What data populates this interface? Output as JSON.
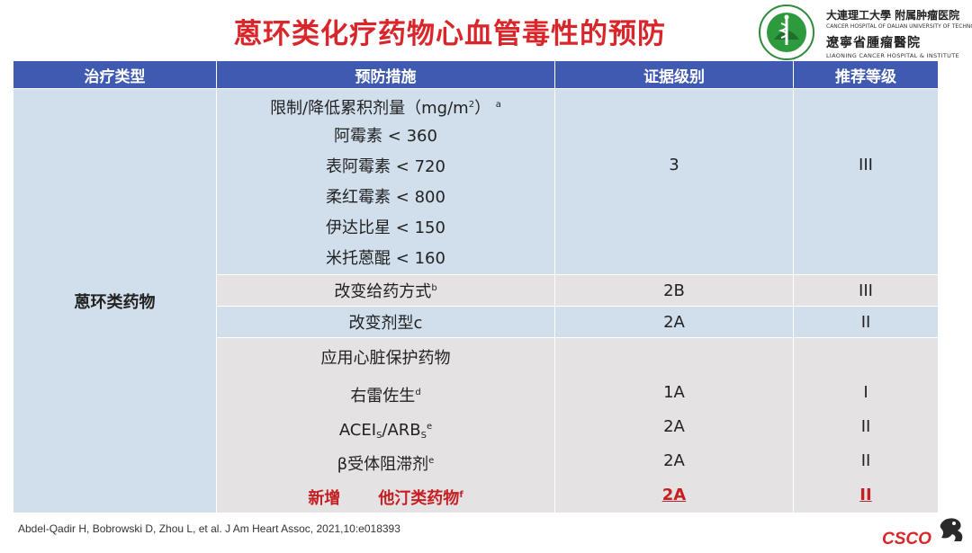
{
  "title": "蒽环类化疗药物心血管毒性的预防",
  "logo": {
    "univ_cn": "大連理工大學 附属肿瘤医院",
    "univ_en": "CANCER HOSPITAL OF DALIAN UNIVERSITY OF TECHNOLOGY",
    "hosp_cn": "遼寧省腫瘤醫院",
    "hosp_en": "LIAONING CANCER HOSPITAL & INSTITUTE"
  },
  "table": {
    "headers": [
      "治疗类型",
      "预防措施",
      "证据级别",
      "推荐等级"
    ],
    "drug_type": "蒽环类药物",
    "group1": {
      "heading": "限制/降低累积剂量（mg/m",
      "heading_sup": "2",
      "heading_close": "）",
      "heading_note": "a",
      "items": [
        "阿霉素 < 360",
        "表阿霉素 < 720",
        "柔红霉素 < 800",
        "伊达比星 < 150",
        "米托蒽醌 < 160"
      ],
      "evidence": "3",
      "grade": "III"
    },
    "row_admin": {
      "measure": "改变给药方式",
      "note": "b",
      "evidence": "2B",
      "grade": "III"
    },
    "row_form": {
      "measure": "改变剂型c",
      "evidence": "2A",
      "grade": "II"
    },
    "group2": {
      "heading": "应用心脏保护药物",
      "dex": {
        "name": "右雷佐生",
        "note": "d",
        "evidence": "1A",
        "grade": "I"
      },
      "acei": {
        "a": "ACEI",
        "a_sub": "S",
        "sep": "/ARB",
        "b_sub": "S",
        "note": "e",
        "evidence": "2A",
        "grade": "II"
      },
      "beta": {
        "name": "β受体阻滞剂",
        "note": "e",
        "evidence": "2A",
        "grade": "II"
      },
      "statin": {
        "new_label": "新增",
        "name": "他汀类药物",
        "note": "f",
        "evidence": "2A",
        "grade": "II"
      }
    }
  },
  "footer": "Abdel-Qadir H, Bobrowski D, Zhou L, et al. J Am Heart Assoc, 2021,10:e018393",
  "csco": "CSCO",
  "colors": {
    "title": "#d8262b",
    "header_bg": "#3f5ab0",
    "blue_cell": "#d1dfec",
    "gray_cell": "#e4e2e2",
    "highlight": "#c42024"
  }
}
